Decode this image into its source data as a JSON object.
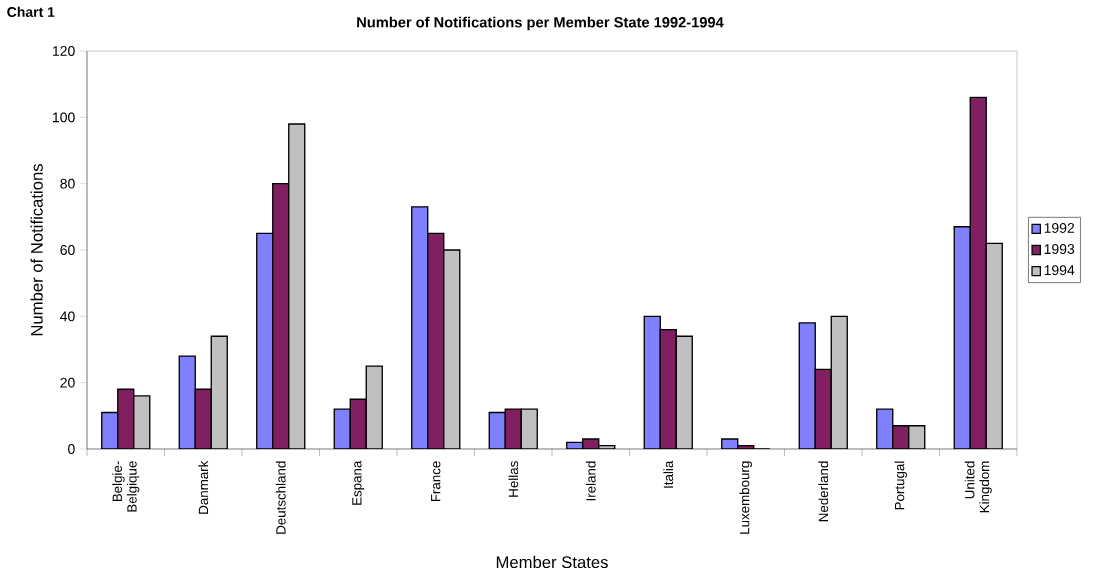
{
  "chart_data": {
    "type": "bar",
    "title": "Number of Notifications per Member State 1992-1994",
    "annotations": [
      "Chart 1"
    ],
    "xlabel": "Member States",
    "ylabel": "Number of Notifications",
    "categories": [
      "Belgie-Belgique",
      "Danmark",
      "Deutschland",
      "Espana",
      "France",
      "Hellas",
      "Ireland",
      "Italia",
      "Luxembourg",
      "Nederland",
      "Portugal",
      "United Kingdom"
    ],
    "series": [
      {
        "name": "1992",
        "color": "#8080ff",
        "values": [
          11,
          28,
          65,
          12,
          73,
          11,
          2,
          40,
          3,
          38,
          12,
          67
        ]
      },
      {
        "name": "1993",
        "color": "#802060",
        "values": [
          18,
          18,
          80,
          15,
          65,
          12,
          3,
          36,
          1,
          24,
          7,
          106
        ]
      },
      {
        "name": "1994",
        "color": "#c0c0c0",
        "values": [
          16,
          34,
          98,
          25,
          60,
          12,
          1,
          34,
          0,
          40,
          7,
          62
        ]
      }
    ],
    "ylim": [
      0,
      120
    ],
    "yticks": [
      0,
      20,
      40,
      60,
      80,
      100,
      120
    ],
    "grid": false,
    "legend": "right"
  }
}
